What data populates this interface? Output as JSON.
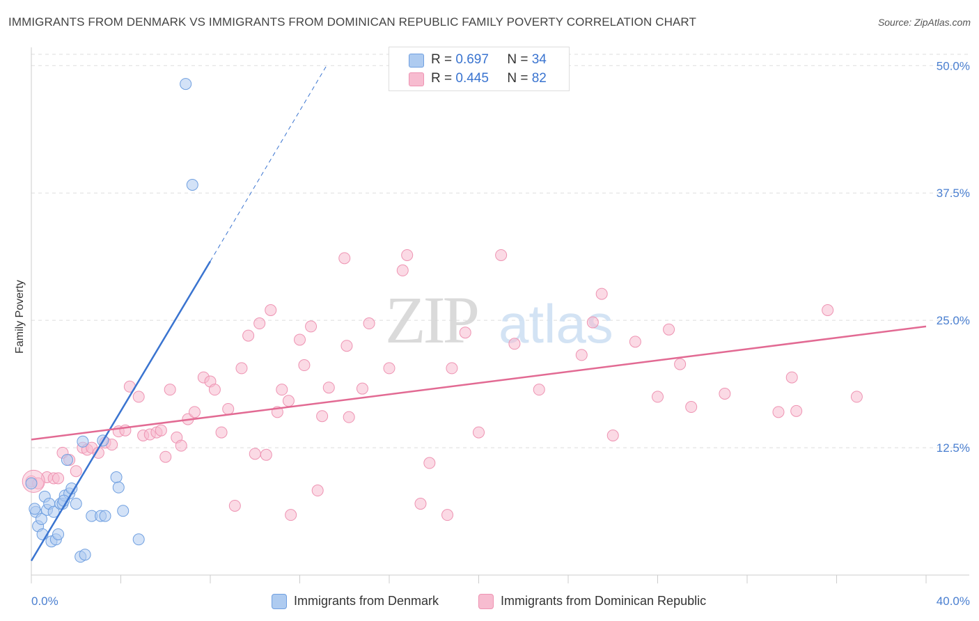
{
  "title": "IMMIGRANTS FROM DENMARK VS IMMIGRANTS FROM DOMINICAN REPUBLIC FAMILY POVERTY CORRELATION CHART",
  "source": "Source: ZipAtlas.com",
  "watermark": {
    "zip": "ZIP",
    "atlas": "atlas"
  },
  "legend": {
    "rows": [
      {
        "r_label": "R =",
        "r_value": "0.697",
        "n_label": "N =",
        "n_value": "34"
      },
      {
        "r_label": "R =",
        "r_value": "0.445",
        "n_label": "N =",
        "n_value": "82"
      }
    ]
  },
  "colors": {
    "denmark_fill": "#aecbf0",
    "denmark_stroke": "#6f9fe0",
    "denmark_line": "#3a74d0",
    "dominican_fill": "#f7bcd0",
    "dominican_stroke": "#ee93b2",
    "dominican_line": "#e26a93",
    "grid": "#dddddd",
    "tick_text": "#4a7fd0"
  },
  "chart_data": {
    "type": "scatter",
    "title": "IMMIGRANTS FROM DENMARK VS IMMIGRANTS FROM DOMINICAN REPUBLIC FAMILY POVERTY CORRELATION CHART",
    "xlabel": "",
    "ylabel": "Family Poverty",
    "xlim": [
      0,
      40
    ],
    "ylim": [
      0,
      52
    ],
    "x_tick_labels": [
      "0.0%",
      "40.0%"
    ],
    "y_ticks": [
      12.5,
      25.0,
      37.5,
      50.0
    ],
    "y_tick_labels": [
      "12.5%",
      "25.0%",
      "37.5%",
      "50.0%"
    ],
    "grid": true,
    "legend_position": "top-center",
    "series": [
      {
        "name": "Immigrants from Denmark",
        "points": [
          [
            0.0,
            9.0
          ],
          [
            0.2,
            6.2
          ],
          [
            0.3,
            4.8
          ],
          [
            0.45,
            5.5
          ],
          [
            0.5,
            4.0
          ],
          [
            0.6,
            7.7
          ],
          [
            0.7,
            6.4
          ],
          [
            0.8,
            7.0
          ],
          [
            0.9,
            3.3
          ],
          [
            1.0,
            6.2
          ],
          [
            1.1,
            3.5
          ],
          [
            1.2,
            4.0
          ],
          [
            1.3,
            7.0
          ],
          [
            1.4,
            7.0
          ],
          [
            1.5,
            7.8
          ],
          [
            1.6,
            11.3
          ],
          [
            1.7,
            8.0
          ],
          [
            1.8,
            8.5
          ],
          [
            2.0,
            7.0
          ],
          [
            2.2,
            1.8
          ],
          [
            2.3,
            13.1
          ],
          [
            2.4,
            2.0
          ],
          [
            2.7,
            5.8
          ],
          [
            3.1,
            5.8
          ],
          [
            3.3,
            5.8
          ],
          [
            3.2,
            13.2
          ],
          [
            3.8,
            9.6
          ],
          [
            3.9,
            8.6
          ],
          [
            4.1,
            6.3
          ],
          [
            4.8,
            3.5
          ],
          [
            6.9,
            48.2
          ],
          [
            7.2,
            38.3
          ],
          [
            0.15,
            6.5
          ],
          [
            1.45,
            7.3
          ]
        ]
      },
      {
        "name": "Immigrants from Dominican Republic",
        "points": [
          [
            0.0,
            9.2
          ],
          [
            0.3,
            9.0
          ],
          [
            0.7,
            9.6
          ],
          [
            1.0,
            9.5
          ],
          [
            1.2,
            9.5
          ],
          [
            1.4,
            12.0
          ],
          [
            1.7,
            11.3
          ],
          [
            2.0,
            10.2
          ],
          [
            2.3,
            12.5
          ],
          [
            2.5,
            12.3
          ],
          [
            2.7,
            12.5
          ],
          [
            3.0,
            12.0
          ],
          [
            3.3,
            13.0
          ],
          [
            3.6,
            12.8
          ],
          [
            3.9,
            14.1
          ],
          [
            4.2,
            14.2
          ],
          [
            4.4,
            18.5
          ],
          [
            4.8,
            17.5
          ],
          [
            5.0,
            13.7
          ],
          [
            5.3,
            13.8
          ],
          [
            5.6,
            14.0
          ],
          [
            5.8,
            14.2
          ],
          [
            6.0,
            11.6
          ],
          [
            6.2,
            18.2
          ],
          [
            6.5,
            13.5
          ],
          [
            6.7,
            12.7
          ],
          [
            7.0,
            15.3
          ],
          [
            7.3,
            16.0
          ],
          [
            7.7,
            19.4
          ],
          [
            8.0,
            19.0
          ],
          [
            8.2,
            18.2
          ],
          [
            8.5,
            14.0
          ],
          [
            8.8,
            16.3
          ],
          [
            9.1,
            6.8
          ],
          [
            9.4,
            20.3
          ],
          [
            9.7,
            23.5
          ],
          [
            10.0,
            11.9
          ],
          [
            10.2,
            24.7
          ],
          [
            10.5,
            11.8
          ],
          [
            10.7,
            26.0
          ],
          [
            11.0,
            16.0
          ],
          [
            11.2,
            18.2
          ],
          [
            11.5,
            17.1
          ],
          [
            11.6,
            5.9
          ],
          [
            12.0,
            23.1
          ],
          [
            12.2,
            20.6
          ],
          [
            12.5,
            24.4
          ],
          [
            12.8,
            8.3
          ],
          [
            13.0,
            15.6
          ],
          [
            13.3,
            18.4
          ],
          [
            14.0,
            31.1
          ],
          [
            14.1,
            22.5
          ],
          [
            14.2,
            15.5
          ],
          [
            14.8,
            18.3
          ],
          [
            15.1,
            24.7
          ],
          [
            16.0,
            20.3
          ],
          [
            16.6,
            29.9
          ],
          [
            16.8,
            31.4
          ],
          [
            17.4,
            7.0
          ],
          [
            17.8,
            11.0
          ],
          [
            18.6,
            5.9
          ],
          [
            18.8,
            20.3
          ],
          [
            19.4,
            23.8
          ],
          [
            20.0,
            14.0
          ],
          [
            21.0,
            31.4
          ],
          [
            21.6,
            22.7
          ],
          [
            22.7,
            18.2
          ],
          [
            24.6,
            21.6
          ],
          [
            25.1,
            24.8
          ],
          [
            25.5,
            27.6
          ],
          [
            26.0,
            13.7
          ],
          [
            27.0,
            22.9
          ],
          [
            28.0,
            17.5
          ],
          [
            28.5,
            24.1
          ],
          [
            29.0,
            20.7
          ],
          [
            29.5,
            16.5
          ],
          [
            31.0,
            17.8
          ],
          [
            33.4,
            16.0
          ],
          [
            34.0,
            19.4
          ],
          [
            34.2,
            16.1
          ],
          [
            35.6,
            26.0
          ],
          [
            36.9,
            17.5
          ]
        ]
      }
    ],
    "trendlines": [
      {
        "series": "Immigrants from Denmark",
        "x": [
          0.0,
          8.0
        ],
        "y": [
          1.4,
          30.8
        ],
        "dashed_extension_to": [
          13.2,
          50.0
        ]
      },
      {
        "series": "Immigrants from Dominican Republic",
        "x": [
          0.0,
          40.0
        ],
        "y": [
          13.3,
          24.4
        ]
      }
    ]
  },
  "bottom_legend": {
    "items": [
      {
        "label": "Immigrants from Denmark"
      },
      {
        "label": "Immigrants from Dominican Republic"
      }
    ]
  }
}
